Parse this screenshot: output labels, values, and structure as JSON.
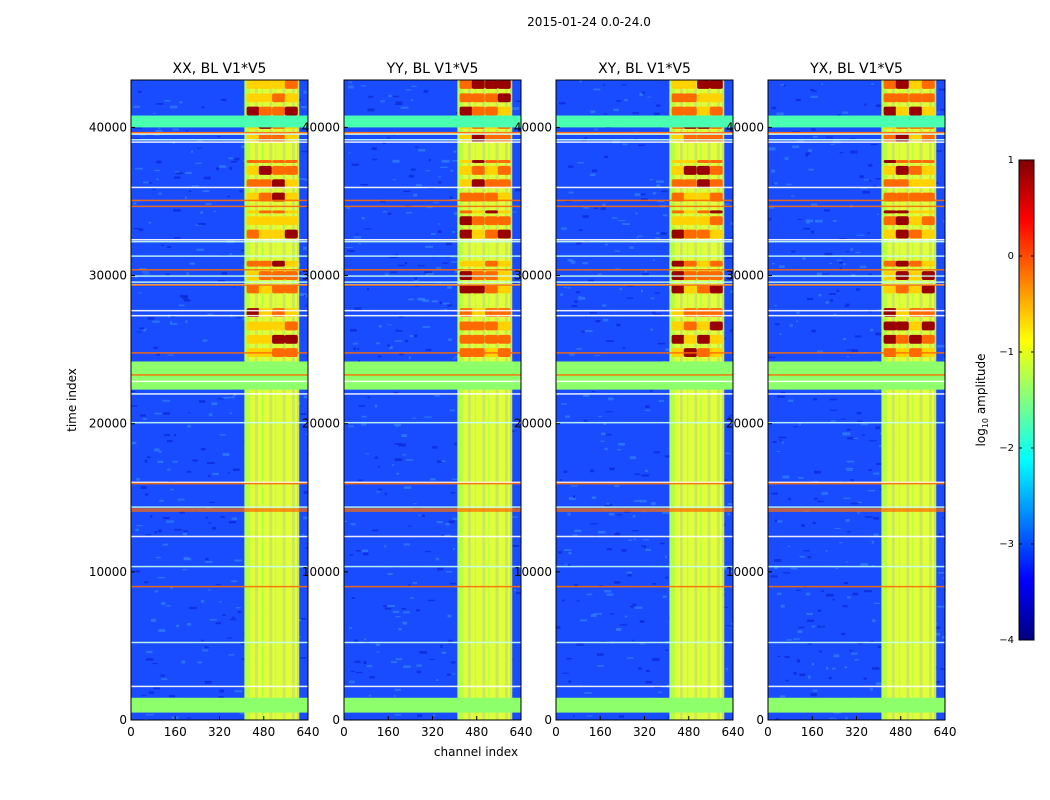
{
  "figure": {
    "suptitle": "2015-01-24 0.0-24.0"
  },
  "chart_data": {
    "type": "heatmap",
    "panels": [
      {
        "title": "XX, BL V1*V5"
      },
      {
        "title": "YY, BL V1*V5"
      },
      {
        "title": "XY, BL V1*V5"
      },
      {
        "title": "YX, BL V1*V5"
      }
    ],
    "xlabel": "channel index",
    "ylabel": "time index",
    "xlim": [
      0,
      640
    ],
    "ylim": [
      0,
      43200
    ],
    "xticks": [
      0,
      160,
      320,
      480,
      640
    ],
    "yticks": [
      0,
      10000,
      20000,
      30000,
      40000
    ],
    "colorbar": {
      "label": "log10 amplitude",
      "label_base": "log",
      "label_sub": "10",
      "label_rest": " amplitude",
      "range": [
        -4,
        1
      ],
      "ticks": [
        1,
        0,
        -1,
        -2,
        -3,
        -4
      ],
      "tick_labels": [
        "1",
        "0",
        "−1",
        "−2",
        "−3",
        "−4"
      ],
      "colormap": "jet"
    },
    "rfi_channel_band": [
      410,
      600
    ],
    "flagged_time_band": [
      22300,
      24200
    ],
    "colors": {
      "background_level": "#1a4cff",
      "band_level": "#b6ff44",
      "strong_level": "#ff6a00",
      "peak_level": "#990000",
      "flag_level": "#8cff6a"
    }
  }
}
